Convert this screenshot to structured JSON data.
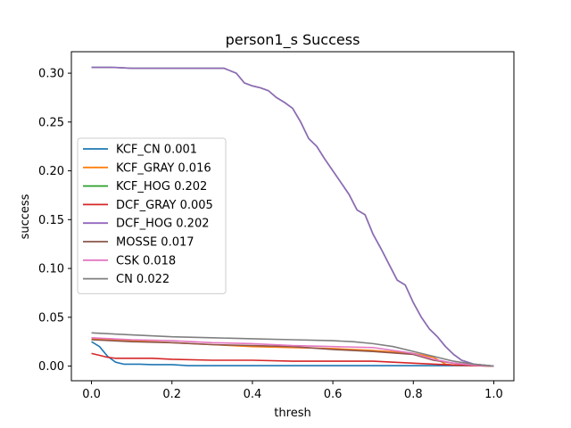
{
  "chart_data": {
    "type": "line",
    "title": "person1_s Success",
    "xlabel": "thresh",
    "ylabel": "success",
    "xlim": [
      -0.05,
      1.05
    ],
    "ylim": [
      -0.015,
      0.322
    ],
    "xticks": [
      0.0,
      0.2,
      0.4,
      0.6,
      0.8,
      1.0
    ],
    "xtick_labels": [
      "0.0",
      "0.2",
      "0.4",
      "0.6",
      "0.8",
      "1.0"
    ],
    "yticks": [
      0.0,
      0.05,
      0.1,
      0.15,
      0.2,
      0.25,
      0.3
    ],
    "ytick_labels": [
      "0.00",
      "0.05",
      "0.10",
      "0.15",
      "0.20",
      "0.25",
      "0.30"
    ],
    "grid": false,
    "legend_position": "center-left",
    "series": [
      {
        "name": "KCF_CN 0.001",
        "color": "#1f77b4",
        "x": [
          0.0,
          0.02,
          0.04,
          0.06,
          0.08,
          0.12,
          0.15,
          0.2,
          0.24,
          0.3,
          0.5,
          0.7,
          0.9,
          0.95,
          1.0
        ],
        "y": [
          0.025,
          0.02,
          0.01,
          0.004,
          0.002,
          0.002,
          0.0015,
          0.0015,
          0.0005,
          0.0005,
          0.0005,
          0.0005,
          0.0005,
          0.0005,
          0.0
        ]
      },
      {
        "name": "KCF_GRAY 0.016",
        "color": "#ff7f0e",
        "x": [
          0.0,
          0.05,
          0.1,
          0.2,
          0.3,
          0.4,
          0.5,
          0.6,
          0.7,
          0.8,
          0.85,
          0.88,
          0.9,
          1.0
        ],
        "y": [
          0.028,
          0.027,
          0.026,
          0.024,
          0.022,
          0.02,
          0.019,
          0.018,
          0.016,
          0.013,
          0.009,
          0.002,
          0.001,
          0.0
        ]
      },
      {
        "name": "KCF_HOG 0.202",
        "color": "#2ca02c",
        "x": [
          0.0,
          0.05,
          0.1,
          0.2,
          0.3,
          0.33,
          0.36,
          0.38,
          0.4,
          0.42,
          0.44,
          0.46,
          0.48,
          0.5,
          0.52,
          0.54,
          0.56,
          0.58,
          0.6,
          0.62,
          0.64,
          0.66,
          0.68,
          0.7,
          0.72,
          0.74,
          0.76,
          0.78,
          0.8,
          0.82,
          0.84,
          0.86,
          0.88,
          0.9,
          0.92,
          0.95,
          1.0
        ],
        "y": [
          0.306,
          0.306,
          0.305,
          0.305,
          0.305,
          0.305,
          0.3,
          0.29,
          0.287,
          0.285,
          0.282,
          0.275,
          0.27,
          0.264,
          0.25,
          0.233,
          0.225,
          0.212,
          0.2,
          0.188,
          0.176,
          0.16,
          0.155,
          0.135,
          0.12,
          0.104,
          0.088,
          0.083,
          0.065,
          0.05,
          0.038,
          0.03,
          0.02,
          0.012,
          0.006,
          0.002,
          0.0
        ]
      },
      {
        "name": "DCF_GRAY 0.005",
        "color": "#d62728",
        "x": [
          0.0,
          0.02,
          0.04,
          0.06,
          0.1,
          0.15,
          0.2,
          0.3,
          0.4,
          0.5,
          0.6,
          0.7,
          0.8,
          0.9,
          1.0
        ],
        "y": [
          0.013,
          0.011,
          0.009,
          0.008,
          0.008,
          0.008,
          0.007,
          0.006,
          0.006,
          0.005,
          0.005,
          0.005,
          0.003,
          0.001,
          0.0
        ]
      },
      {
        "name": "DCF_HOG 0.202",
        "color": "#9467bd",
        "x": [
          0.0,
          0.05,
          0.1,
          0.2,
          0.3,
          0.33,
          0.36,
          0.38,
          0.4,
          0.42,
          0.44,
          0.46,
          0.48,
          0.5,
          0.52,
          0.54,
          0.56,
          0.58,
          0.6,
          0.62,
          0.64,
          0.66,
          0.68,
          0.7,
          0.72,
          0.74,
          0.76,
          0.78,
          0.8,
          0.82,
          0.84,
          0.86,
          0.88,
          0.9,
          0.92,
          0.95,
          1.0
        ],
        "y": [
          0.306,
          0.306,
          0.305,
          0.305,
          0.305,
          0.305,
          0.3,
          0.29,
          0.287,
          0.285,
          0.282,
          0.275,
          0.27,
          0.264,
          0.25,
          0.233,
          0.225,
          0.212,
          0.2,
          0.188,
          0.176,
          0.16,
          0.155,
          0.135,
          0.12,
          0.104,
          0.088,
          0.083,
          0.065,
          0.05,
          0.038,
          0.03,
          0.02,
          0.012,
          0.006,
          0.002,
          0.0
        ]
      },
      {
        "name": "MOSSE 0.017",
        "color": "#8c564b",
        "x": [
          0.0,
          0.05,
          0.1,
          0.2,
          0.3,
          0.4,
          0.5,
          0.6,
          0.7,
          0.8,
          0.85,
          0.9,
          0.95,
          1.0
        ],
        "y": [
          0.027,
          0.026,
          0.025,
          0.024,
          0.022,
          0.021,
          0.02,
          0.017,
          0.015,
          0.012,
          0.006,
          0.003,
          0.001,
          0.0
        ]
      },
      {
        "name": "CSK 0.018",
        "color": "#e377c2",
        "x": [
          0.0,
          0.05,
          0.1,
          0.2,
          0.3,
          0.4,
          0.5,
          0.6,
          0.7,
          0.8,
          0.85,
          0.9,
          0.95,
          1.0
        ],
        "y": [
          0.029,
          0.028,
          0.027,
          0.026,
          0.024,
          0.023,
          0.021,
          0.02,
          0.019,
          0.013,
          0.007,
          0.003,
          0.001,
          0.0
        ]
      },
      {
        "name": "CN 0.022",
        "color": "#7f7f7f",
        "x": [
          0.0,
          0.05,
          0.1,
          0.2,
          0.3,
          0.4,
          0.5,
          0.6,
          0.65,
          0.7,
          0.75,
          0.8,
          0.85,
          0.9,
          0.95,
          1.0
        ],
        "y": [
          0.034,
          0.033,
          0.032,
          0.03,
          0.029,
          0.028,
          0.027,
          0.026,
          0.025,
          0.023,
          0.02,
          0.015,
          0.01,
          0.005,
          0.002,
          0.0
        ]
      }
    ]
  }
}
